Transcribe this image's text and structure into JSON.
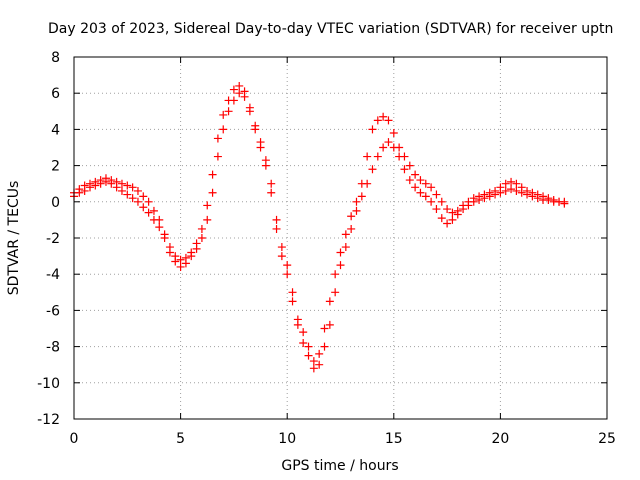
{
  "chart_data": {
    "type": "scatter",
    "title": "Day 203 of 2023, Sidereal Day-to-day VTEC variation (SDTVAR) for receiver uptn",
    "xlabel": "GPS time / hours",
    "ylabel": "SDTVAR / TECUs",
    "xlim": [
      0,
      25
    ],
    "ylim": [
      -12,
      8
    ],
    "xticks": [
      0,
      5,
      10,
      15,
      20,
      25
    ],
    "yticks": [
      -12,
      -10,
      -8,
      -6,
      -4,
      -2,
      0,
      2,
      4,
      6,
      8
    ],
    "grid": true,
    "marker": "+",
    "series": [
      {
        "name": "SDTVAR",
        "color": "#ff0000",
        "x": [
          0.0,
          0.25,
          0.5,
          0.75,
          1.0,
          1.25,
          1.5,
          1.75,
          2.0,
          2.25,
          2.5,
          2.75,
          3.0,
          3.25,
          3.5,
          3.75,
          4.0,
          4.25,
          4.5,
          4.75,
          5.0,
          5.25,
          5.5,
          5.75,
          6.0,
          6.25,
          6.5,
          6.75,
          7.0,
          7.25,
          7.5,
          7.75,
          8.0,
          8.25,
          8.5,
          8.75,
          9.0,
          9.25,
          9.5,
          9.75,
          10.0,
          10.25,
          10.5,
          10.75,
          11.0,
          11.25,
          11.5,
          11.75,
          12.0,
          12.25,
          12.5,
          12.75,
          13.0,
          13.25,
          13.5,
          13.75,
          14.0,
          14.25,
          14.5,
          14.75,
          15.0,
          15.25,
          15.5,
          15.75,
          16.0,
          16.25,
          16.5,
          16.75,
          17.0,
          17.25,
          17.5,
          17.75,
          18.0,
          18.25,
          18.5,
          18.75,
          19.0,
          19.25,
          19.5,
          19.75,
          20.0,
          20.25,
          20.5,
          20.75,
          21.0,
          21.25,
          21.5,
          21.75,
          22.0,
          22.25,
          22.5,
          22.75,
          23.0
        ],
        "values": [
          0.3,
          0.5,
          0.6,
          0.8,
          0.9,
          1.0,
          1.1,
          1.0,
          0.8,
          0.6,
          0.4,
          0.2,
          0.0,
          -0.3,
          -0.6,
          -1.0,
          -1.4,
          -2.0,
          -2.8,
          -3.3,
          -3.6,
          -3.4,
          -3.0,
          -2.6,
          -2.0,
          -1.0,
          0.5,
          2.5,
          4.0,
          5.0,
          5.6,
          6.0,
          5.8,
          5.0,
          4.0,
          3.0,
          2.0,
          0.5,
          -1.5,
          -3.0,
          -4.0,
          -5.5,
          -6.8,
          -7.8,
          -8.5,
          -9.2,
          -9.0,
          -8.0,
          -6.8,
          -5.0,
          -3.5,
          -2.5,
          -1.5,
          -0.5,
          0.3,
          1.0,
          1.8,
          2.5,
          3.0,
          3.3,
          3.0,
          2.5,
          1.8,
          1.2,
          0.8,
          0.5,
          0.3,
          0.0,
          -0.4,
          -0.9,
          -1.2,
          -1.0,
          -0.7,
          -0.4,
          -0.2,
          0.0,
          0.1,
          0.2,
          0.3,
          0.4,
          0.5,
          0.6,
          0.7,
          0.6,
          0.5,
          0.4,
          0.3,
          0.2,
          0.1,
          0.1,
          0.0,
          0.0,
          0.0
        ],
        "values_alt": [
          0.5,
          0.7,
          0.9,
          1.0,
          1.1,
          1.2,
          1.3,
          1.2,
          1.1,
          1.0,
          0.9,
          0.8,
          0.6,
          0.3,
          0.0,
          -0.5,
          -1.0,
          -1.8,
          -2.5,
          -3.0,
          -3.2,
          -3.1,
          -2.8,
          -2.3,
          -1.5,
          -0.2,
          1.5,
          3.5,
          4.8,
          5.6,
          6.2,
          6.4,
          6.1,
          5.2,
          4.2,
          3.3,
          2.3,
          1.0,
          -1.0,
          -2.5,
          -3.5,
          -5.0,
          -6.5,
          -7.2,
          -8.0,
          -8.8,
          -8.4,
          -7.0,
          -5.5,
          -4.0,
          -2.8,
          -1.8,
          -0.8,
          0.0,
          1.0,
          2.5,
          4.0,
          4.5,
          4.7,
          4.5,
          3.8,
          3.0,
          2.5,
          2.0,
          1.5,
          1.2,
          1.0,
          0.8,
          0.4,
          0.0,
          -0.4,
          -0.6,
          -0.5,
          -0.2,
          0.0,
          0.2,
          0.3,
          0.4,
          0.5,
          0.6,
          0.8,
          1.0,
          1.1,
          1.0,
          0.8,
          0.6,
          0.5,
          0.4,
          0.3,
          0.2,
          0.1,
          0.0,
          -0.1
        ]
      }
    ]
  }
}
